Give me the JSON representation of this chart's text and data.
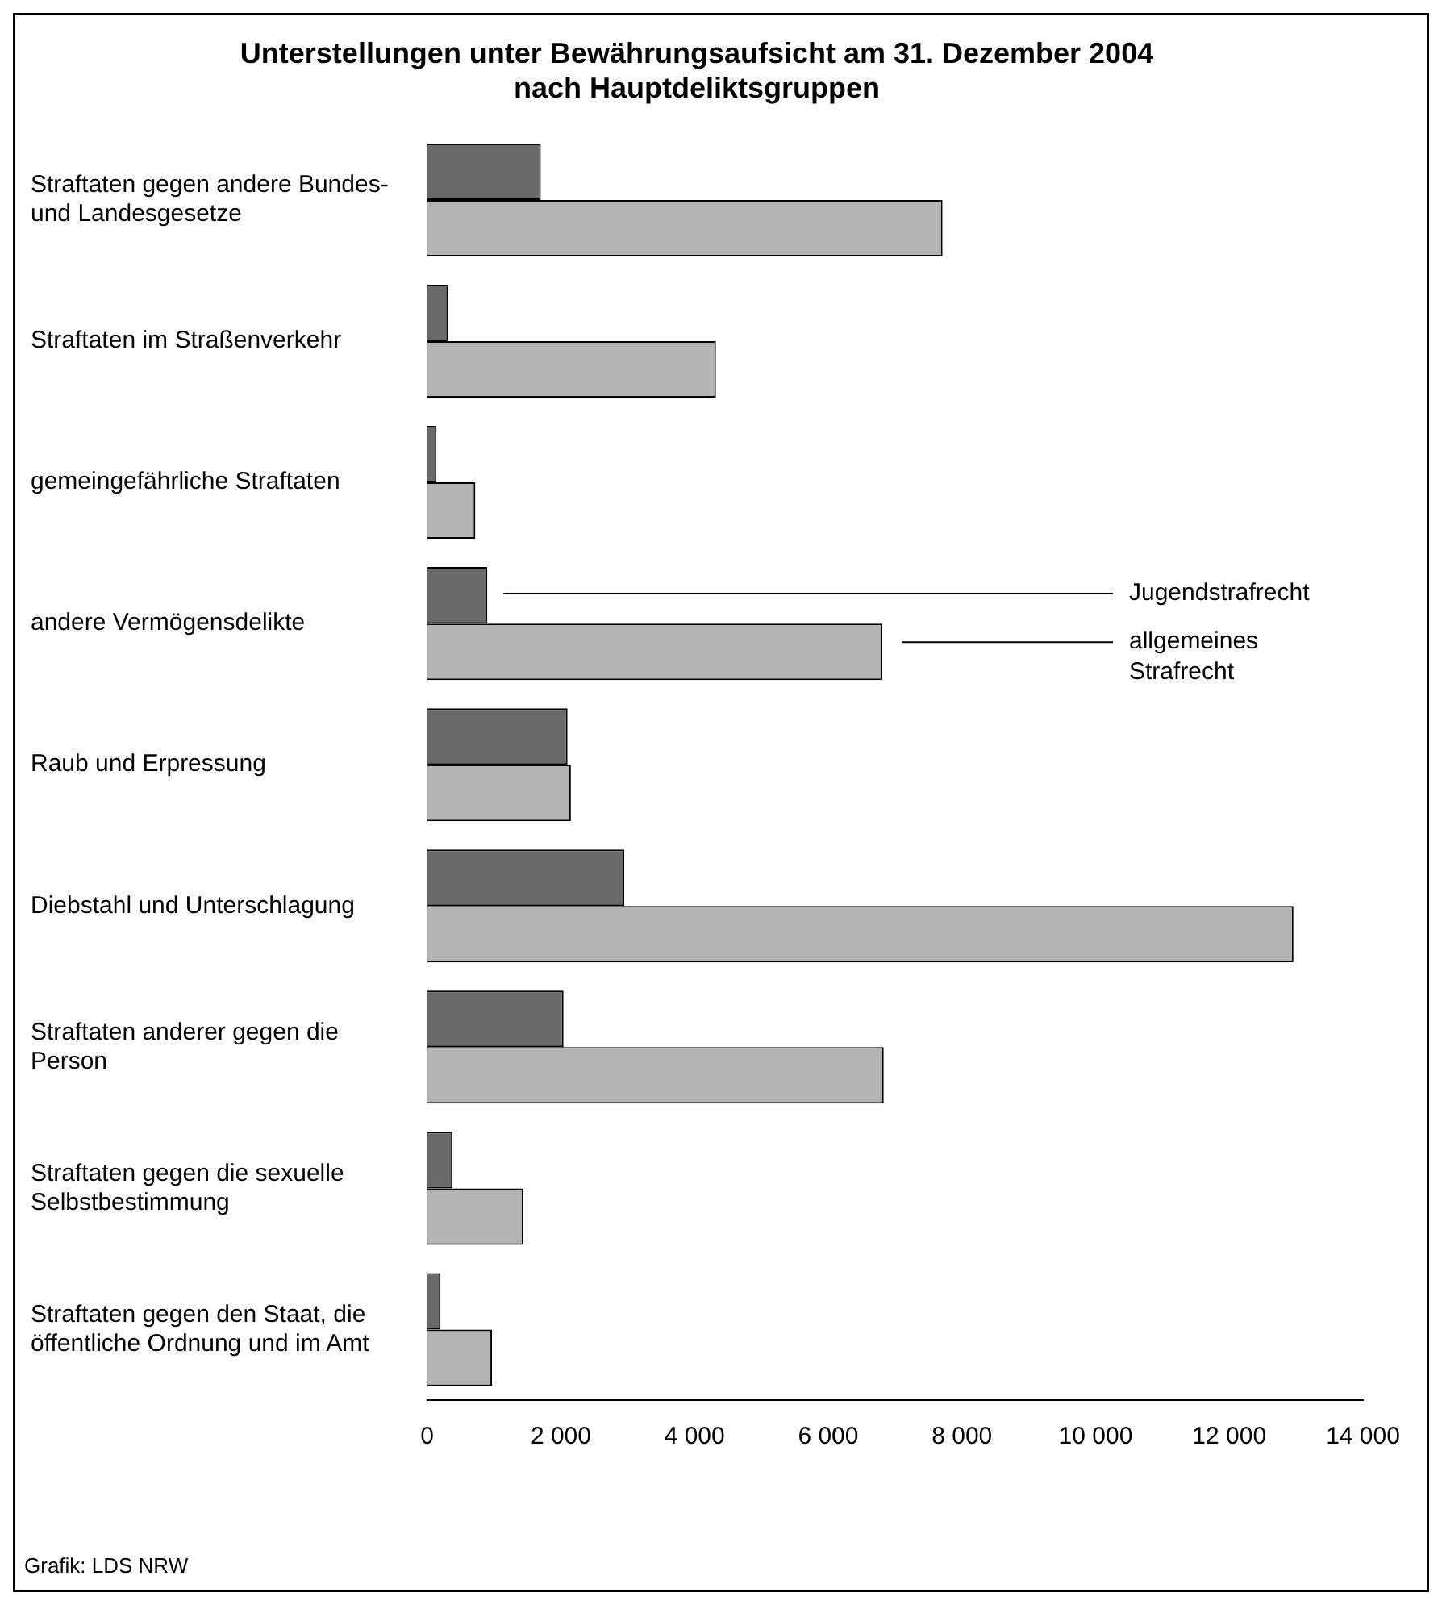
{
  "chart_data": {
    "type": "bar",
    "orientation": "horizontal",
    "title": "Unterstellungen unter Bewährungsaufsicht am 31. Dezember 2004\nnach Hauptdeliktsgruppen",
    "categories": [
      "Straftaten gegen andere Bundes- und Landesgesetze",
      "Straftaten im Straßenverkehr",
      "gemeingefährliche Straftaten",
      "andere Vermögensdelikte",
      "Raub und Erpressung",
      "Diebstahl und Unterschlagung",
      "Straftaten anderer gegen die Person",
      "Straftaten gegen die sexuelle Selbstbestimmung",
      "Straftaten gegen den Staat, die öffentliche Ordnung und im Amt"
    ],
    "series": [
      {
        "name": "Jugendstrafrecht",
        "color": "#696969",
        "values": [
          1700,
          310,
          140,
          900,
          2100,
          2950,
          2040,
          380,
          200
        ]
      },
      {
        "name": "allgemeines Strafrecht",
        "color": "#b3b3b3",
        "values": [
          7710,
          4320,
          720,
          6810,
          2150,
          12960,
          6830,
          1440,
          970
        ]
      }
    ],
    "xlim": [
      0,
      14000
    ],
    "xticks": [
      0,
      {
        "value": 2000,
        "label": "2 000"
      },
      {
        "value": 4000,
        "label": "4 000"
      },
      {
        "value": 6000,
        "label": "6 000"
      },
      {
        "value": 8000,
        "label": "8 000"
      },
      {
        "value": 10000,
        "label": "10 000"
      },
      {
        "value": 12000,
        "label": "12 000"
      },
      {
        "value": 14000,
        "label": "14 000"
      }
    ],
    "grid": false,
    "legend": "right",
    "annotations": [
      "Grafik: LDS NRW"
    ]
  }
}
